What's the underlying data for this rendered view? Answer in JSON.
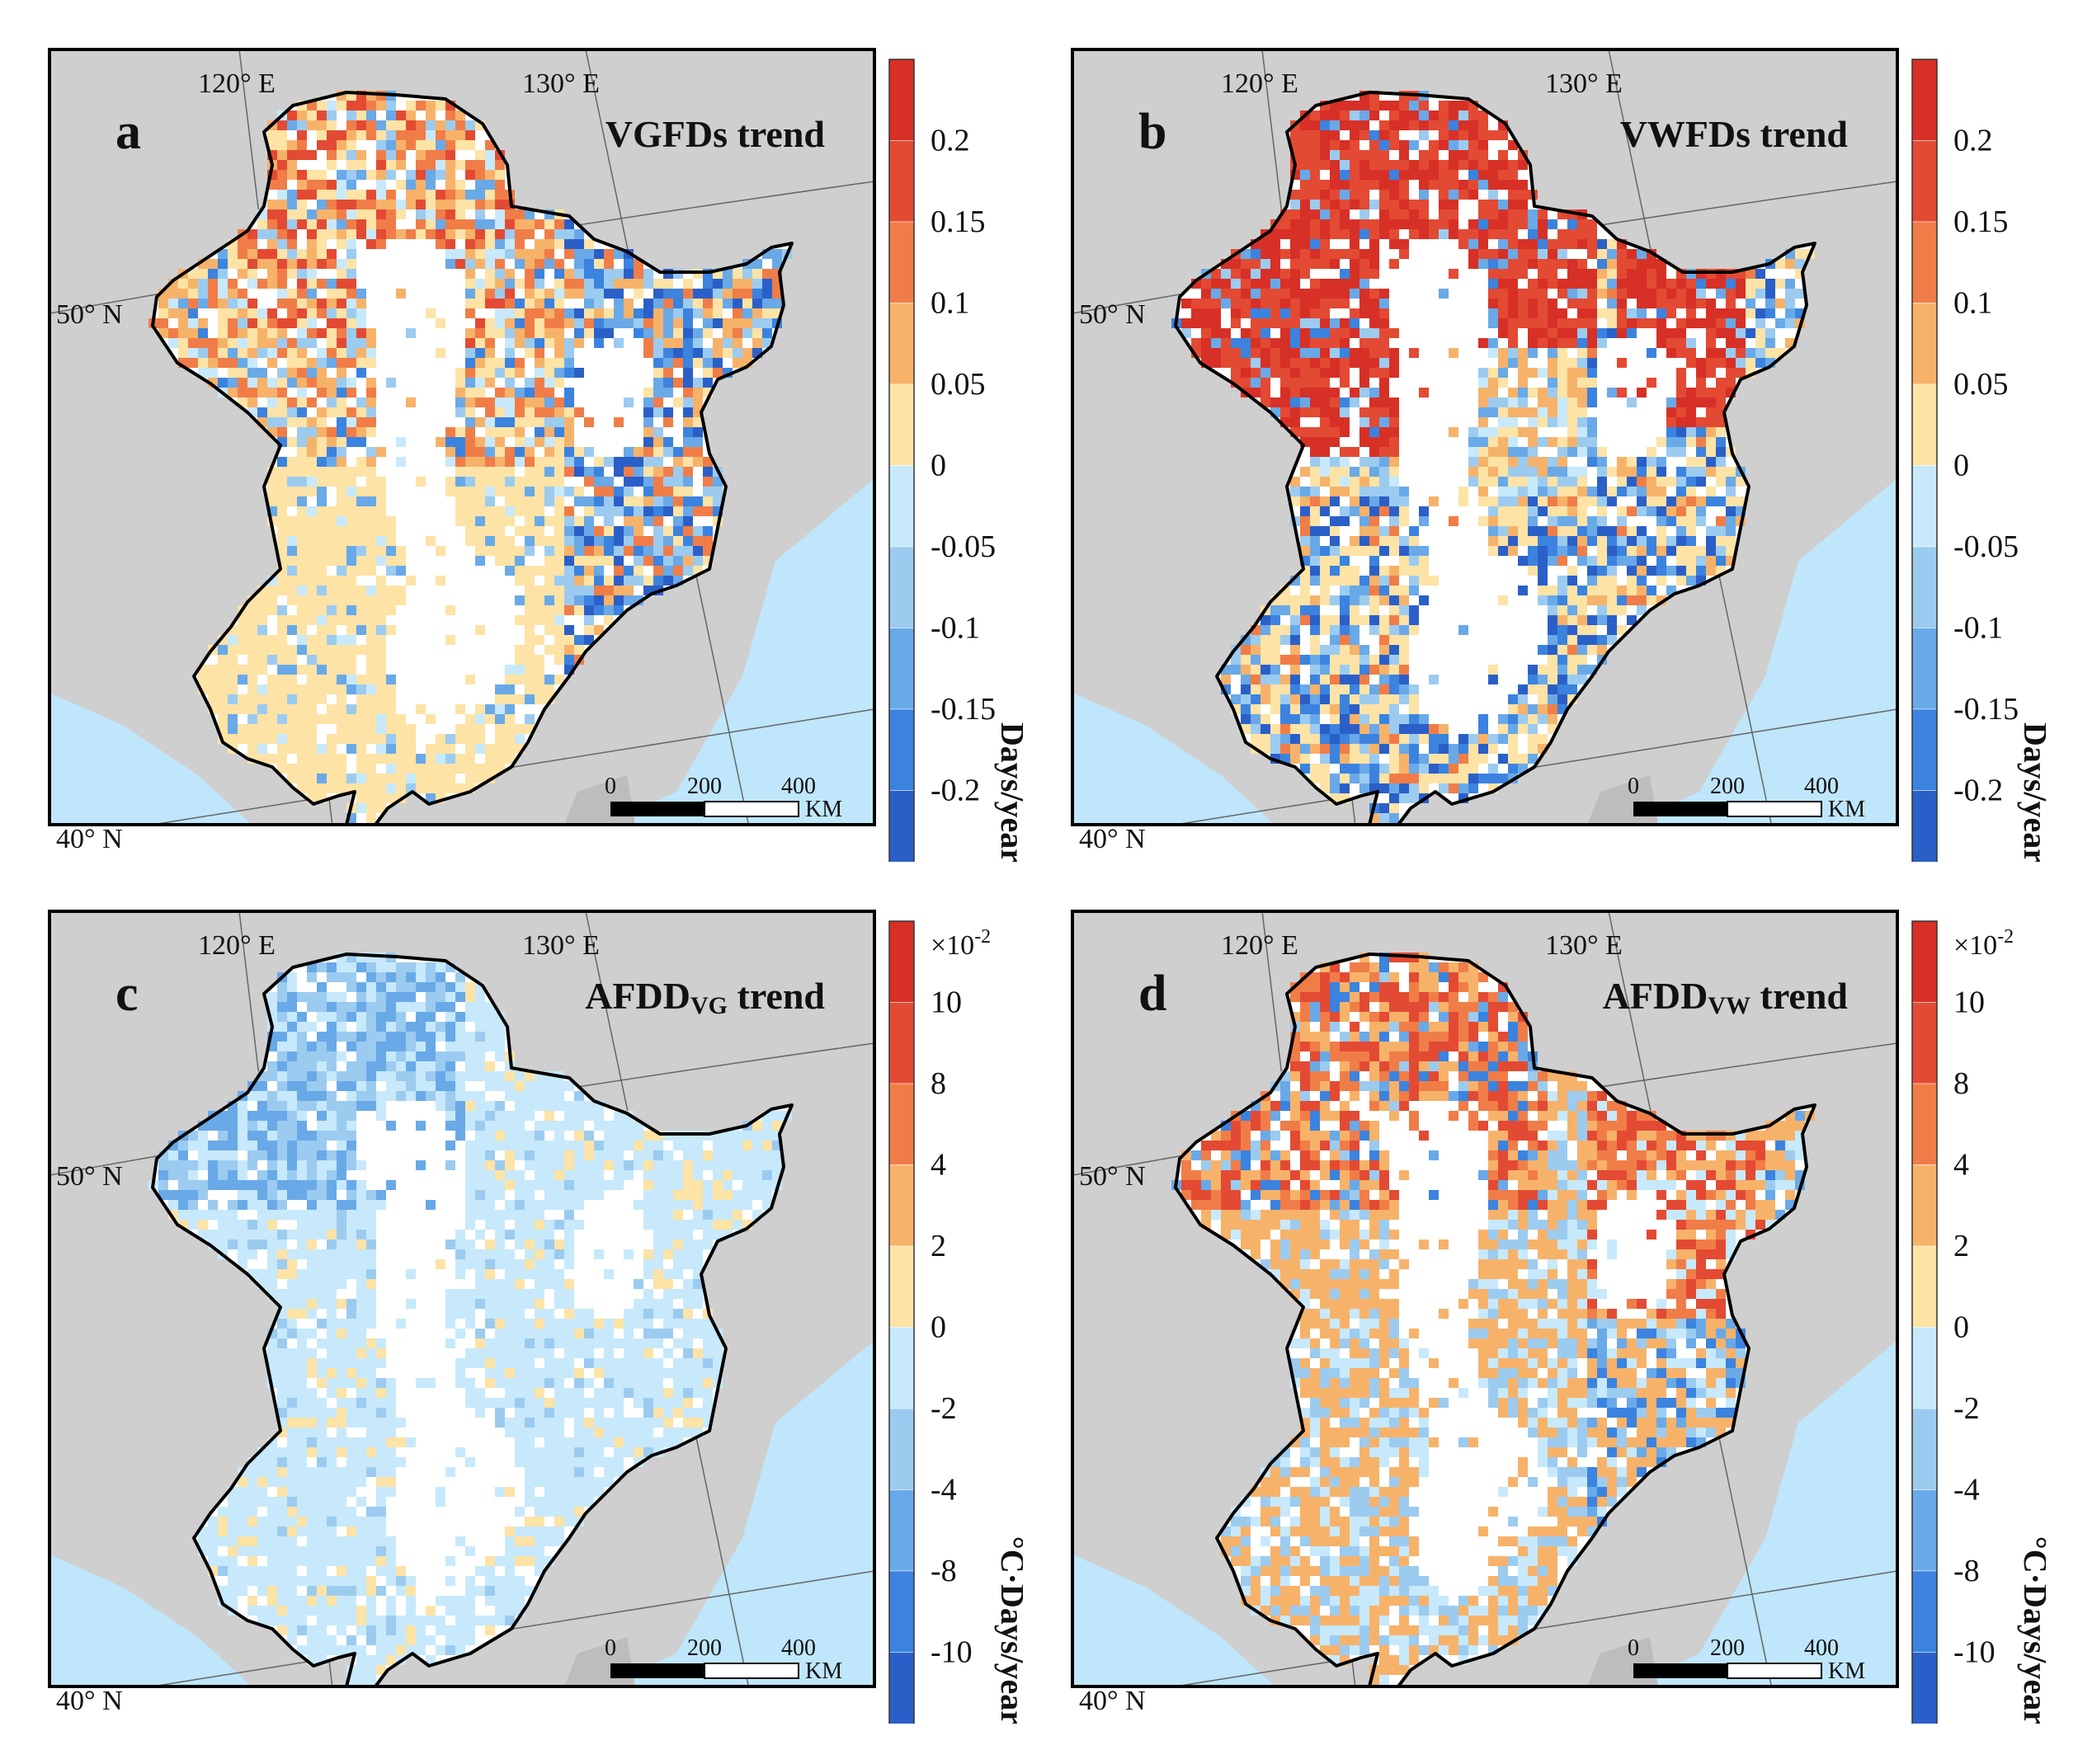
{
  "colors": {
    "land_gray": "#cfcfcf",
    "ocean": "#bfe6fb",
    "inside": "#ffffff",
    "border": "#000000",
    "scale_ticks_a": [
      "#a50f15",
      "#d7301f",
      "#ee6a3a",
      "#f4a25c",
      "#fde3a6",
      "#c7e9fb",
      "#8fc7ef",
      "#5aa5e8",
      "#2c7fe0",
      "#1f5fc8"
    ]
  },
  "panels": [
    {
      "letter": "a",
      "title": "VGFDs trend",
      "title_sub": "",
      "title_tail": "",
      "lon_labels": [
        "120° E",
        "130° E"
      ],
      "lat_labels": [
        "50° N",
        "40° N"
      ],
      "pattern": "mixed",
      "colorbar": {
        "exponent_label": "",
        "ticks": [
          "0.2",
          "0.15",
          "0.1",
          "0.05",
          "0",
          "-0.05",
          "-0.1",
          "-0.15",
          "-0.2"
        ],
        "unit": "Days/year",
        "colors": [
          "#d73027",
          "#e34a33",
          "#f07d48",
          "#f7b26a",
          "#fde3a6",
          "#c7e9fb",
          "#9ccbf0",
          "#69a9e8",
          "#3b83df",
          "#2b5fc8"
        ]
      },
      "scale": {
        "ticks": [
          "0",
          "200",
          "400"
        ],
        "unit": "KM"
      }
    },
    {
      "letter": "b",
      "title": "VWFDs trend",
      "title_sub": "",
      "title_tail": "",
      "lon_labels": [
        "120° E",
        "130° E"
      ],
      "lat_labels": [
        "50° N",
        "40° N"
      ],
      "pattern": "red_north",
      "colorbar": {
        "exponent_label": "",
        "ticks": [
          "0.2",
          "0.15",
          "0.1",
          "0.05",
          "0",
          "-0.05",
          "-0.1",
          "-0.15",
          "-0.2"
        ],
        "unit": "Days/year",
        "colors": [
          "#d73027",
          "#e34a33",
          "#f07d48",
          "#f7b26a",
          "#fde3a6",
          "#c7e9fb",
          "#9ccbf0",
          "#69a9e8",
          "#3b83df",
          "#2b5fc8"
        ]
      },
      "scale": {
        "ticks": [
          "0",
          "200",
          "400"
        ],
        "unit": "KM"
      }
    },
    {
      "letter": "c",
      "title": "AFDD",
      "title_sub": "VG",
      "title_tail": " trend",
      "lon_labels": [
        "120° E",
        "130° E"
      ],
      "lat_labels": [
        "50° N",
        "40° N"
      ],
      "pattern": "light_blue",
      "colorbar": {
        "exponent_label": "×10",
        "exponent_power": "-2",
        "ticks": [
          "10",
          "8",
          "4",
          "2",
          "0",
          "-2",
          "-4",
          "-8",
          "-10"
        ],
        "unit": "°C·Days/year",
        "colors": [
          "#d73027",
          "#e34a33",
          "#f07d48",
          "#f7b26a",
          "#fde3a6",
          "#c7e9fb",
          "#9ccbf0",
          "#69a9e8",
          "#3b83df",
          "#2b5fc8"
        ]
      },
      "scale": {
        "ticks": [
          "0",
          "200",
          "400"
        ],
        "unit": "KM"
      }
    },
    {
      "letter": "d",
      "title": "AFDD",
      "title_sub": "VW",
      "title_tail": " trend",
      "lon_labels": [
        "120° E",
        "130° E"
      ],
      "lat_labels": [
        "50° N",
        "40° N"
      ],
      "pattern": "orange_north",
      "colorbar": {
        "exponent_label": "×10",
        "exponent_power": "-2",
        "ticks": [
          "10",
          "8",
          "4",
          "2",
          "0",
          "-2",
          "-4",
          "-8",
          "-10"
        ],
        "unit": "°C·Days/year",
        "colors": [
          "#d73027",
          "#e34a33",
          "#f07d48",
          "#f7b26a",
          "#fde3a6",
          "#c7e9fb",
          "#9ccbf0",
          "#69a9e8",
          "#3b83df",
          "#2b5fc8"
        ]
      },
      "scale": {
        "ticks": [
          "0",
          "200",
          "400"
        ],
        "unit": "KM"
      }
    }
  ]
}
